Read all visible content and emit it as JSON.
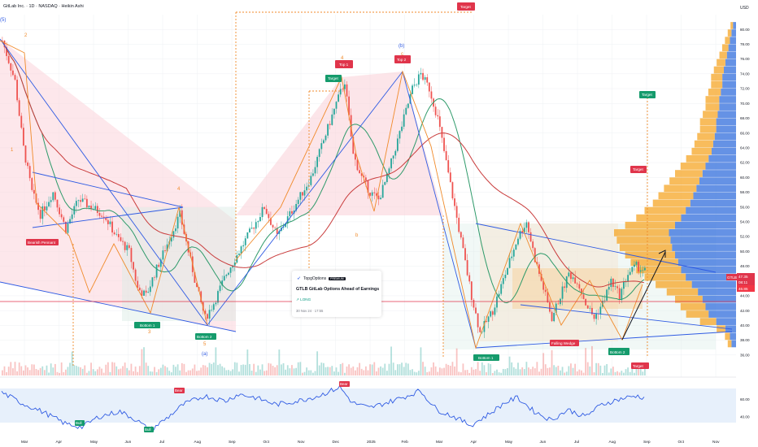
{
  "header": {
    "symbol_line": "GitLab Inc. · 1D · NASDAQ · Heikin Ashi",
    "currency": "USD"
  },
  "idea_card": {
    "brand": "TopgOptions",
    "badge": "PREMIUM",
    "title": "GTLB GitLab Options Ahead of Earnings",
    "direction": "LONG",
    "timestamp": "30 Nov 24 · 17:55"
  },
  "price_tags": {
    "ticker": "GTLB",
    "last": "47.35",
    "countdown": "08:11",
    "secondary": "46.85"
  },
  "chart_data": {
    "type": "candlestick",
    "title": "GitLab Inc. · 1D · NASDAQ · Heikin Ashi",
    "y_axis": {
      "unit": "USD",
      "range": [
        34,
        82
      ],
      "ticks": [
        36,
        38,
        40,
        42,
        44,
        46,
        48,
        50,
        52,
        54,
        56,
        58,
        60,
        62,
        64,
        66,
        68,
        70,
        72,
        74,
        76,
        78,
        80
      ],
      "tick_labels": [
        "36.00",
        "38.00",
        "40.00",
        "42.00",
        "44.00",
        "46.00",
        "48.00",
        "50.00",
        "52.00",
        "54.00",
        "56.00",
        "58.00",
        "60.00",
        "62.00",
        "64.00",
        "66.00",
        "68.00",
        "70.00",
        "72.00",
        "74.00",
        "76.00",
        "78.00",
        "80.00"
      ]
    },
    "x_axis": {
      "ticks": [
        "Mar",
        "Apr",
        "May",
        "Jun",
        "Jul",
        "Aug",
        "Sep",
        "Oct",
        "Nov",
        "Dec",
        "2025",
        "Feb",
        "Mar",
        "Apr",
        "May",
        "Jun",
        "Jul",
        "Aug",
        "Sep",
        "Oct",
        "Nov"
      ]
    },
    "price_path": [
      [
        0,
        78.5
      ],
      [
        6,
        73
      ],
      [
        10,
        64
      ],
      [
        14,
        58
      ],
      [
        18,
        55
      ],
      [
        24,
        58
      ],
      [
        30,
        53
      ],
      [
        36,
        57
      ],
      [
        42,
        56
      ],
      [
        48,
        55
      ],
      [
        54,
        52
      ],
      [
        60,
        50
      ],
      [
        64,
        45
      ],
      [
        68,
        44
      ],
      [
        72,
        47
      ],
      [
        78,
        51
      ],
      [
        84,
        55
      ],
      [
        88,
        50
      ],
      [
        92,
        45
      ],
      [
        96,
        41
      ],
      [
        100,
        43
      ],
      [
        106,
        47
      ],
      [
        112,
        50
      ],
      [
        118,
        53
      ],
      [
        124,
        56
      ],
      [
        130,
        52
      ],
      [
        136,
        55
      ],
      [
        140,
        57
      ],
      [
        146,
        60
      ],
      [
        152,
        65
      ],
      [
        158,
        70
      ],
      [
        162,
        73
      ],
      [
        166,
        63
      ],
      [
        170,
        60
      ],
      [
        174,
        58
      ],
      [
        178,
        57
      ],
      [
        182,
        60
      ],
      [
        188,
        66
      ],
      [
        194,
        72
      ],
      [
        198,
        74
      ],
      [
        202,
        72
      ],
      [
        206,
        68
      ],
      [
        210,
        62
      ],
      [
        214,
        56
      ],
      [
        218,
        50
      ],
      [
        222,
        44
      ],
      [
        226,
        39
      ],
      [
        232,
        42
      ],
      [
        238,
        47
      ],
      [
        244,
        52
      ],
      [
        248,
        54
      ],
      [
        252,
        49
      ],
      [
        256,
        45
      ],
      [
        260,
        41
      ],
      [
        264,
        44
      ],
      [
        268,
        47
      ],
      [
        272,
        46
      ],
      [
        276,
        43
      ],
      [
        280,
        41
      ],
      [
        284,
        43
      ],
      [
        288,
        46
      ],
      [
        292,
        44
      ],
      [
        296,
        47
      ],
      [
        300,
        48
      ],
      [
        304,
        47.35
      ]
    ],
    "total_bars": 304,
    "last_close": 47.35,
    "moving_averages": [
      {
        "name": "MA fast",
        "color": "#2e9a6a"
      },
      {
        "name": "MA slow",
        "color": "#c93c3c"
      }
    ],
    "volume_profile": {
      "price_bins": [
        37,
        38,
        39,
        40,
        41,
        42,
        43,
        44,
        45,
        46,
        47,
        48,
        49,
        50,
        51,
        52,
        53,
        54,
        55,
        56,
        57,
        58,
        59,
        60,
        61,
        62,
        63,
        64,
        65,
        66,
        67,
        68,
        69,
        70,
        71,
        72,
        73,
        74,
        75,
        76,
        77,
        78,
        79,
        80
      ],
      "volume": [
        6,
        8,
        14,
        26,
        36,
        40,
        44,
        50,
        58,
        66,
        72,
        76,
        80,
        84,
        86,
        88,
        80,
        72,
        66,
        60,
        56,
        52,
        48,
        44,
        40,
        36,
        32,
        30,
        28,
        26,
        26,
        24,
        22,
        22,
        20,
        18,
        18,
        16,
        14,
        12,
        10,
        8,
        6,
        4
      ]
    },
    "rsi": {
      "range": [
        20,
        80
      ],
      "ticks": [
        40,
        60
      ],
      "tick_labels": [
        "40.00",
        "60.00"
      ],
      "band": [
        30,
        70
      ],
      "path": [
        [
          0,
          68
        ],
        [
          10,
          55
        ],
        [
          20,
          45
        ],
        [
          30,
          32
        ],
        [
          38,
          28
        ],
        [
          46,
          40
        ],
        [
          56,
          46
        ],
        [
          64,
          36
        ],
        [
          70,
          24
        ],
        [
          78,
          38
        ],
        [
          86,
          54
        ],
        [
          96,
          64
        ],
        [
          106,
          58
        ],
        [
          112,
          66
        ],
        [
          120,
          62
        ],
        [
          130,
          54
        ],
        [
          140,
          58
        ],
        [
          150,
          64
        ],
        [
          160,
          74
        ],
        [
          166,
          56
        ],
        [
          174,
          50
        ],
        [
          182,
          56
        ],
        [
          192,
          64
        ],
        [
          198,
          70
        ],
        [
          206,
          48
        ],
        [
          214,
          40
        ],
        [
          222,
          30
        ],
        [
          230,
          42
        ],
        [
          238,
          56
        ],
        [
          244,
          62
        ],
        [
          252,
          46
        ],
        [
          260,
          36
        ],
        [
          268,
          48
        ],
        [
          276,
          40
        ],
        [
          284,
          54
        ],
        [
          292,
          60
        ],
        [
          300,
          64
        ],
        [
          304,
          62
        ]
      ],
      "labels": [
        "Bull",
        "Bull",
        "Bear",
        "Bear"
      ]
    },
    "annotations": {
      "waves": [
        "(5)",
        "2",
        "1",
        "3",
        "4",
        "5",
        "(a)",
        "(b)",
        "4",
        "c",
        "b"
      ],
      "signals": [
        "Bearish Pennant",
        "Bottom 1",
        "Bottom 2",
        "Target",
        "Top 1",
        "Top 2",
        "Target",
        "Bottom 1",
        "Falling Wedge",
        "Bottom 2",
        "Target",
        "Target",
        "Target"
      ]
    }
  },
  "colors": {
    "bull": "#26a69a",
    "bear": "#ef5350",
    "pattern_fill": "#f7c8cf",
    "wedge_fill": "#f5dcc6",
    "profile_up": "#4a7fe0",
    "profile_down": "#f6a626",
    "grid": "#eef0f3",
    "label_red": "#e0354b",
    "label_green": "#159b6c",
    "trend_blue": "#2f5be3",
    "trend_orange": "#f08a2a"
  }
}
